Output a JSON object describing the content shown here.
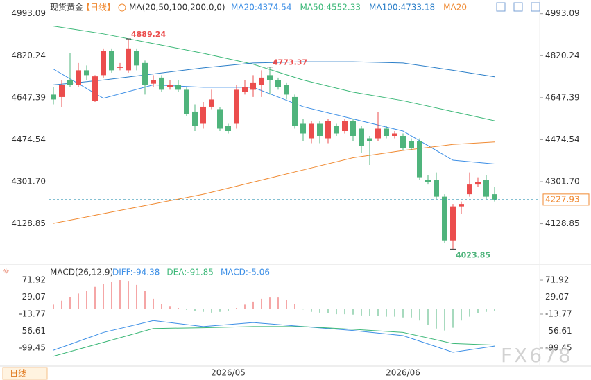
{
  "chart_data": [
    {
      "type": "candlestick",
      "title": "现货黄金",
      "period": "【日线】",
      "indicator": "MA(20,50,100,200,0,0)",
      "categories": [
        null,
        null,
        null,
        null,
        null,
        null,
        null,
        null,
        null,
        null,
        null,
        null,
        null,
        null,
        null,
        null,
        null,
        null,
        null,
        null,
        null,
        "2026/05",
        null,
        null,
        null,
        null,
        null,
        null,
        null,
        null,
        null,
        null,
        null,
        null,
        null,
        null,
        null,
        null,
        null,
        null,
        null,
        null,
        "2026/06",
        null,
        null,
        null,
        null,
        null,
        null,
        null,
        null,
        null,
        null,
        null
      ],
      "open": [
        4660,
        4650,
        4720,
        4700,
        4760,
        4635,
        4740,
        4840,
        4770,
        4760,
        4840,
        4790,
        4705,
        4730,
        4690,
        4700,
        4680,
        4590,
        4540,
        4610,
        4600,
        4530,
        4540,
        4670,
        4680,
        4700,
        4740,
        4720,
        4700,
        4650,
        4540,
        4480,
        4540,
        4480,
        4530,
        4510,
        4550,
        4520,
        4480,
        4480,
        4520,
        4490,
        4490,
        4470,
        4470,
        4310,
        4310,
        4240,
        4060,
        4200,
        4250,
        4290,
        4310,
        4250
      ],
      "high": [
        4690,
        4720,
        4830,
        4790,
        4780,
        4740,
        4850,
        4850,
        4790,
        4889.24,
        4850,
        4800,
        4740,
        4740,
        4720,
        4720,
        4690,
        4620,
        4630,
        4680,
        4610,
        4540,
        4700,
        4720,
        4740,
        4760,
        4773.37,
        4730,
        4710,
        4660,
        4560,
        4550,
        4550,
        4560,
        4540,
        4560,
        4560,
        4530,
        4490,
        4590,
        4530,
        4510,
        4500,
        4480,
        4480,
        4330,
        4340,
        4250,
        4210,
        4220,
        4340,
        4320,
        4330,
        4280
      ],
      "low": [
        4620,
        4610,
        4690,
        4690,
        4720,
        4630,
        4730,
        4750,
        4760,
        4750,
        4760,
        4660,
        4690,
        4670,
        4680,
        4670,
        4570,
        4510,
        4520,
        4600,
        4510,
        4500,
        4520,
        4660,
        4650,
        4650,
        4660,
        4680,
        4640,
        4520,
        4470,
        4460,
        4460,
        4460,
        4490,
        4500,
        4470,
        4420,
        4370,
        4470,
        4480,
        4480,
        4430,
        4430,
        4310,
        4290,
        4230,
        4050,
        4023.85,
        4170,
        4240,
        4280,
        4230,
        4220
      ],
      "close": [
        4640,
        4700,
        4700,
        4760,
        4740,
        4735,
        4840,
        4760,
        4775,
        4850,
        4780,
        4700,
        4720,
        4680,
        4700,
        4680,
        4580,
        4530,
        4610,
        4640,
        4520,
        4510,
        4680,
        4690,
        4710,
        4730,
        4720,
        4690,
        4660,
        4530,
        4500,
        4540,
        4490,
        4550,
        4500,
        4550,
        4490,
        4450,
        4470,
        4520,
        4490,
        4500,
        4440,
        4440,
        4320,
        4300,
        4240,
        4060,
        4200,
        4210,
        4290,
        4300,
        4240,
        4227.93
      ],
      "up_color": "#eb4d4d",
      "down_color": "#4fb47c",
      "series": [
        {
          "name": "MA20:4374.54",
          "color": "#3d8fe6",
          "x": [
            0,
            6,
            12,
            18,
            24,
            30,
            36,
            42,
            48,
            53
          ],
          "values": [
            4765,
            4645,
            4700,
            4690,
            4690,
            4610,
            4560,
            4510,
            4390,
            4374.54
          ]
        },
        {
          "name": "MA50:4552.33",
          "color": "#3cb878",
          "x": [
            0,
            6,
            12,
            18,
            24,
            30,
            36,
            42,
            48,
            53
          ],
          "values": [
            4942,
            4910,
            4870,
            4830,
            4785,
            4720,
            4670,
            4635,
            4590,
            4552.33
          ]
        },
        {
          "name": "MA100:4733.18",
          "color": "#2c7fc9",
          "x": [
            0,
            6,
            12,
            18,
            24,
            30,
            36,
            42,
            48,
            53
          ],
          "values": [
            4700,
            4720,
            4745,
            4770,
            4790,
            4795,
            4795,
            4790,
            4760,
            4733.18
          ]
        },
        {
          "name": "MA20",
          "color": "#f08a32",
          "x": [
            0,
            6,
            12,
            18,
            24,
            30,
            36,
            42,
            48,
            53
          ],
          "values": [
            4130,
            4170,
            4210,
            4250,
            4300,
            4350,
            4400,
            4430,
            4455,
            4465
          ]
        }
      ],
      "annotations": [
        {
          "x": 9,
          "value": 4889.24,
          "color": "#eb4d4d"
        },
        {
          "x": 26,
          "value": 4773.37,
          "color": "#eb4d4d"
        },
        {
          "x": 48,
          "value": 4023.85,
          "color": "#4fb47c"
        }
      ],
      "last_price": 4227.93,
      "ylim": [
        3965,
        5035
      ],
      "yticks": [
        4993.09,
        4820.24,
        4647.39,
        4474.54,
        {
          "value": 4301.7,
          "label": "4301.70"
        },
        4128.85
      ]
    },
    {
      "type": "macd",
      "title": "MACD(26,12,9)",
      "histogram": {
        "name": "MACD:-5.06",
        "up_color": "#eb4d4d",
        "down_color": "#4fb47c",
        "values": [
          10,
          20,
          30,
          38,
          45,
          55,
          62,
          68,
          72,
          70,
          60,
          45,
          25,
          12,
          5,
          2,
          -3,
          -6,
          -8,
          -10,
          -8,
          -5,
          2,
          10,
          18,
          25,
          28,
          28,
          22,
          12,
          -2,
          -8,
          -10,
          -12,
          -14,
          -14,
          -15,
          -17,
          -18,
          -19,
          -20,
          -20,
          -22,
          -22,
          -30,
          -40,
          -50,
          -55,
          -48,
          -30,
          -20,
          -12,
          -8,
          -5.06
        ]
      },
      "series": [
        {
          "name": "DIFF:-94.38",
          "color": "#3d8fe6",
          "x": [
            0,
            6,
            12,
            18,
            24,
            30,
            36,
            42,
            48,
            53
          ],
          "values": [
            -105,
            -60,
            -30,
            -45,
            -35,
            -45,
            -55,
            -68,
            -110,
            -94.38
          ]
        },
        {
          "name": "DEA:-91.85",
          "color": "#3cb878",
          "x": [
            0,
            6,
            12,
            18,
            24,
            30,
            36,
            42,
            48,
            53
          ],
          "values": [
            -120,
            -85,
            -50,
            -48,
            -45,
            -45,
            -52,
            -60,
            -88,
            -91.85
          ]
        }
      ],
      "ylim": [
        -131,
        100
      ],
      "yticks": [
        71.92,
        29.07,
        -13.77,
        -56.61,
        -99.45
      ],
      "tab": "日线",
      "watermark": "FX678"
    }
  ]
}
